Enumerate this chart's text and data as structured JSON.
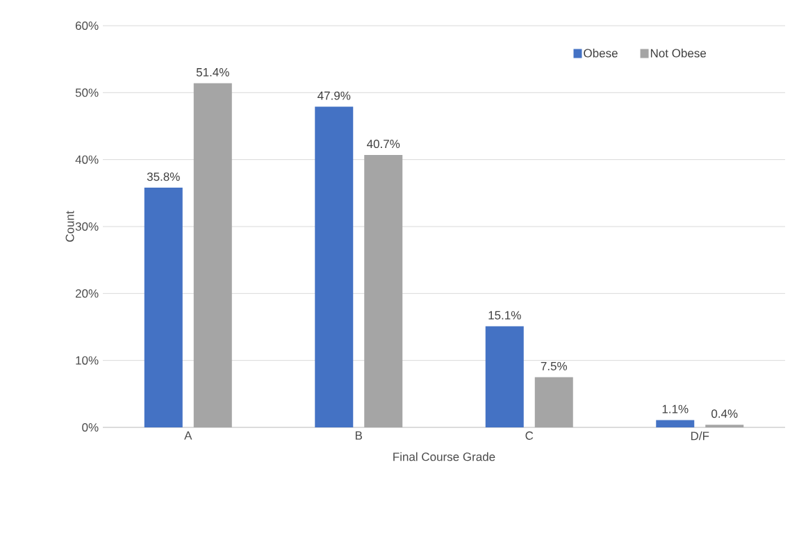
{
  "chart_data": {
    "type": "bar",
    "xlabel": "Final Course Grade",
    "ylabel": "Count",
    "categories": [
      "A",
      "B",
      "C",
      "D/F"
    ],
    "series": [
      {
        "name": "Obese",
        "color": "#4472c4",
        "values": [
          35.8,
          47.9,
          15.1,
          1.1
        ],
        "value_labels": [
          "35.8%",
          "47.9%",
          "15.1%",
          "1.1%"
        ]
      },
      {
        "name": "Not Obese",
        "color": "#a5a5a5",
        "values": [
          51.4,
          40.7,
          7.5,
          0.4
        ],
        "value_labels": [
          "51.4%",
          "40.7%",
          "7.5%",
          "0.4%"
        ]
      }
    ],
    "ylim": [
      0,
      60
    ],
    "yticks": [
      {
        "value": 0,
        "label": "0%"
      },
      {
        "value": 10,
        "label": "10%"
      },
      {
        "value": 20,
        "label": "20%"
      },
      {
        "value": 30,
        "label": "30%"
      },
      {
        "value": 40,
        "label": "40%"
      },
      {
        "value": 50,
        "label": "50%"
      },
      {
        "value": 60,
        "label": "60%"
      }
    ],
    "grid": "y",
    "legend": "top right"
  }
}
